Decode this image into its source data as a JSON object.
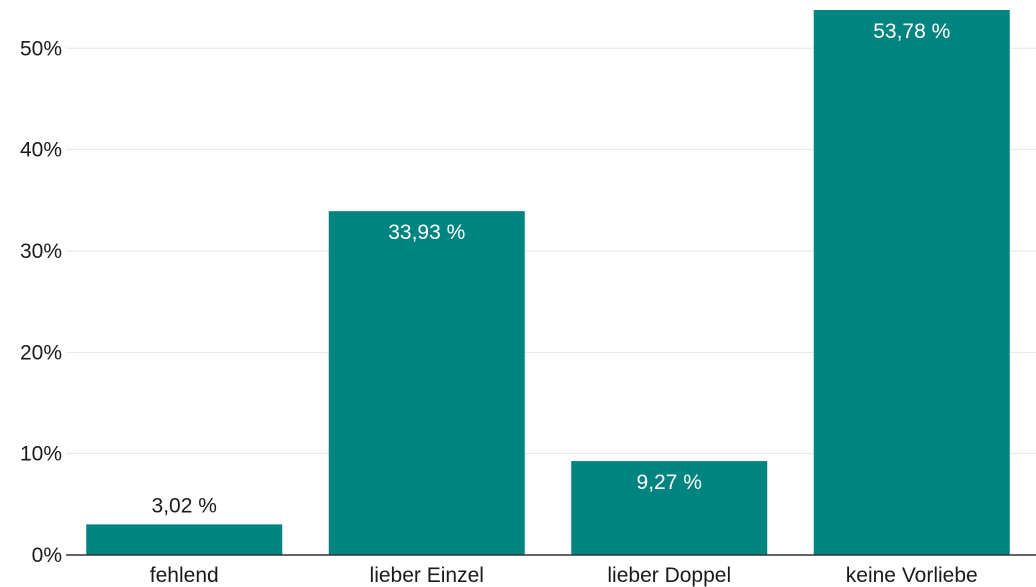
{
  "chart_data": {
    "type": "bar",
    "title": "",
    "xlabel": "",
    "ylabel": "",
    "categories": [
      "fehlend",
      "lieber Einzel",
      "lieber Doppel",
      "keine Vorliebe"
    ],
    "values": [
      3.02,
      33.93,
      9.27,
      53.78
    ],
    "data_labels": [
      "3,02 %",
      "33,93 %",
      "9,27 %",
      "53,78 %"
    ],
    "ylim": [
      0,
      53.78
    ],
    "yticks": [
      0,
      10,
      20,
      30,
      40,
      50
    ],
    "ytick_labels": [
      "0%",
      "10%",
      "20%",
      "30%",
      "40%",
      "50%"
    ],
    "grid": true,
    "legend": "none",
    "colors": {
      "bar": "#008480",
      "label_inside": "#ffffff",
      "label_outside": "#1a1a1a"
    }
  }
}
